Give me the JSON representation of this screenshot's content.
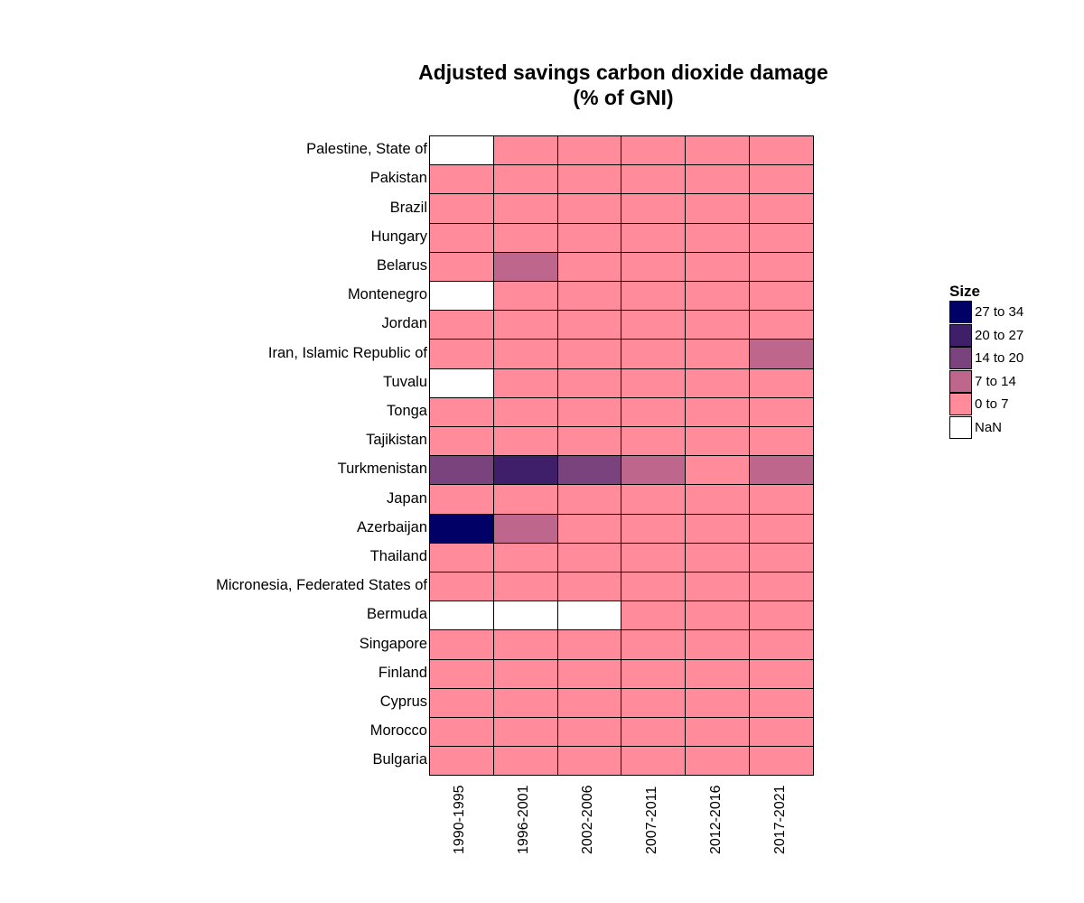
{
  "chart_data": {
    "type": "heatmap",
    "title": [
      "Adjusted savings carbon dioxide damage",
      "(% of GNI)"
    ],
    "columns": [
      "1990-1995",
      "1996-2001",
      "2002-2006",
      "2007-2011",
      "2012-2016",
      "2017-2021"
    ],
    "rows": [
      "Palestine, State of",
      "Pakistan",
      "Brazil",
      "Hungary",
      "Belarus",
      "Montenegro",
      "Jordan",
      "Iran, Islamic Republic of",
      "Tuvalu",
      "Tonga",
      "Tajikistan",
      "Turkmenistan",
      "Japan",
      "Azerbaijan",
      "Thailand",
      "Micronesia, Federated States of",
      "Bermuda",
      "Singapore",
      "Finland",
      "Cyprus",
      "Morocco",
      "Bulgaria"
    ],
    "cell_bins": [
      [
        "NaN",
        "0 to 7",
        "0 to 7",
        "0 to 7",
        "0 to 7",
        "0 to 7"
      ],
      [
        "0 to 7",
        "0 to 7",
        "0 to 7",
        "0 to 7",
        "0 to 7",
        "0 to 7"
      ],
      [
        "0 to 7",
        "0 to 7",
        "0 to 7",
        "0 to 7",
        "0 to 7",
        "0 to 7"
      ],
      [
        "0 to 7",
        "0 to 7",
        "0 to 7",
        "0 to 7",
        "0 to 7",
        "0 to 7"
      ],
      [
        "0 to 7",
        "7 to 14",
        "0 to 7",
        "0 to 7",
        "0 to 7",
        "0 to 7"
      ],
      [
        "NaN",
        "0 to 7",
        "0 to 7",
        "0 to 7",
        "0 to 7",
        "0 to 7"
      ],
      [
        "0 to 7",
        "0 to 7",
        "0 to 7",
        "0 to 7",
        "0 to 7",
        "0 to 7"
      ],
      [
        "0 to 7",
        "0 to 7",
        "0 to 7",
        "0 to 7",
        "0 to 7",
        "7 to 14"
      ],
      [
        "NaN",
        "0 to 7",
        "0 to 7",
        "0 to 7",
        "0 to 7",
        "0 to 7"
      ],
      [
        "0 to 7",
        "0 to 7",
        "0 to 7",
        "0 to 7",
        "0 to 7",
        "0 to 7"
      ],
      [
        "0 to 7",
        "0 to 7",
        "0 to 7",
        "0 to 7",
        "0 to 7",
        "0 to 7"
      ],
      [
        "14 to 20",
        "20 to 27",
        "14 to 20",
        "7 to 14",
        "0 to 7",
        "7 to 14"
      ],
      [
        "0 to 7",
        "0 to 7",
        "0 to 7",
        "0 to 7",
        "0 to 7",
        "0 to 7"
      ],
      [
        "27 to 34",
        "7 to 14",
        "0 to 7",
        "0 to 7",
        "0 to 7",
        "0 to 7"
      ],
      [
        "0 to 7",
        "0 to 7",
        "0 to 7",
        "0 to 7",
        "0 to 7",
        "0 to 7"
      ],
      [
        "0 to 7",
        "0 to 7",
        "0 to 7",
        "0 to 7",
        "0 to 7",
        "0 to 7"
      ],
      [
        "NaN",
        "NaN",
        "NaN",
        "0 to 7",
        "0 to 7",
        "0 to 7"
      ],
      [
        "0 to 7",
        "0 to 7",
        "0 to 7",
        "0 to 7",
        "0 to 7",
        "0 to 7"
      ],
      [
        "0 to 7",
        "0 to 7",
        "0 to 7",
        "0 to 7",
        "0 to 7",
        "0 to 7"
      ],
      [
        "0 to 7",
        "0 to 7",
        "0 to 7",
        "0 to 7",
        "0 to 7",
        "0 to 7"
      ],
      [
        "0 to 7",
        "0 to 7",
        "0 to 7",
        "0 to 7",
        "0 to 7",
        "0 to 7"
      ],
      [
        "0 to 7",
        "0 to 7",
        "0 to 7",
        "0 to 7",
        "0 to 7",
        "0 to 7"
      ]
    ],
    "legend": {
      "title": "Size",
      "placement": "right",
      "items": [
        {
          "label": "27 to 34",
          "color": "#000066"
        },
        {
          "label": "20 to 27",
          "color": "#3f1f6a"
        },
        {
          "label": "14 to 20",
          "color": "#7a437d"
        },
        {
          "label": "7 to 14",
          "color": "#bf668d"
        },
        {
          "label": "0 to 7",
          "color": "#ff8b9b"
        },
        {
          "label": "NaN",
          "color": "#ffffff"
        }
      ]
    },
    "grid": false
  }
}
